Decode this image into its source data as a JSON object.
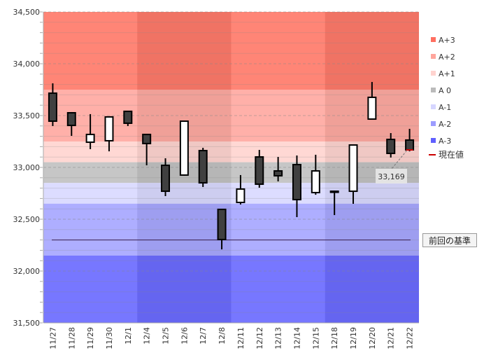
{
  "chart_data": {
    "type": "candlestick",
    "ylim": [
      31500,
      34500
    ],
    "yticks": [
      31500,
      32000,
      32500,
      33000,
      33500,
      34000,
      34500
    ],
    "ytick_labels": [
      "31,500",
      "32,000",
      "32,500",
      "33,000",
      "33,500",
      "34,000",
      "34,500"
    ],
    "categories": [
      "11/27",
      "11/28",
      "11/29",
      "11/30",
      "12/1",
      "12/4",
      "12/5",
      "12/6",
      "12/7",
      "12/8",
      "12/11",
      "12/12",
      "12/13",
      "12/14",
      "12/15",
      "12/18",
      "12/19",
      "12/20",
      "12/21",
      "12/22"
    ],
    "ohlc": [
      [
        33716,
        33811,
        33399,
        33446
      ],
      [
        33527,
        33534,
        33304,
        33405
      ],
      [
        33243,
        33514,
        33176,
        33318
      ],
      [
        33257,
        33487,
        33155,
        33487
      ],
      [
        33541,
        33547,
        33399,
        33426
      ],
      [
        33318,
        33318,
        33020,
        33230
      ],
      [
        33020,
        33088,
        32723,
        32770
      ],
      [
        32926,
        33446,
        32919,
        33446
      ],
      [
        33162,
        33189,
        32811,
        32851
      ],
      [
        32595,
        32595,
        32209,
        32304
      ],
      [
        32662,
        32926,
        32642,
        32791
      ],
      [
        33101,
        33169,
        32804,
        32838
      ],
      [
        32966,
        33101,
        32865,
        32919
      ],
      [
        33027,
        33115,
        32520,
        32689
      ],
      [
        32757,
        33122,
        32736,
        32966
      ],
      [
        32770,
        32777,
        32540,
        32770
      ],
      [
        32770,
        33216,
        32649,
        33216
      ],
      [
        33466,
        33824,
        33466,
        33676
      ],
      [
        33270,
        33331,
        33095,
        33135
      ],
      [
        33264,
        33372,
        33155,
        33169
      ]
    ],
    "bands": [
      {
        "name": "A+3",
        "from": 33750,
        "to": 34500,
        "color": "#ff7b6b"
      },
      {
        "name": "A+2",
        "from": 33250,
        "to": 33750,
        "color": "#ffaaa2"
      },
      {
        "name": "A+1",
        "from": 33050,
        "to": 33250,
        "color": "#ffd5d1"
      },
      {
        "name": "A 0",
        "from": 32850,
        "to": 33050,
        "color": "#c2c2c2"
      },
      {
        "name": "A-1",
        "from": 32650,
        "to": 32850,
        "color": "#dadaff"
      },
      {
        "name": "A-2",
        "from": 32150,
        "to": 32650,
        "color": "#a8a8ff"
      },
      {
        "name": "A-3",
        "from": 31500,
        "to": 32150,
        "color": "#6c6cff"
      }
    ],
    "previous_base": 32300,
    "current_value": 33169,
    "current_label": "33,169",
    "legend": [
      {
        "label": "A+3",
        "color": "#ff6f61"
      },
      {
        "label": "A+2",
        "color": "#ffa59c"
      },
      {
        "label": "A+1",
        "color": "#ffd3cf"
      },
      {
        "label": "A 0",
        "color": "#bbbbbb"
      },
      {
        "label": "A-1",
        "color": "#d6d6ff"
      },
      {
        "label": "A-2",
        "color": "#9c9cff"
      },
      {
        "label": "A-3",
        "color": "#6060ff"
      }
    ],
    "current_legend": {
      "label": "現在値",
      "color": "#cc0000"
    },
    "base_button": "前回の基準"
  }
}
